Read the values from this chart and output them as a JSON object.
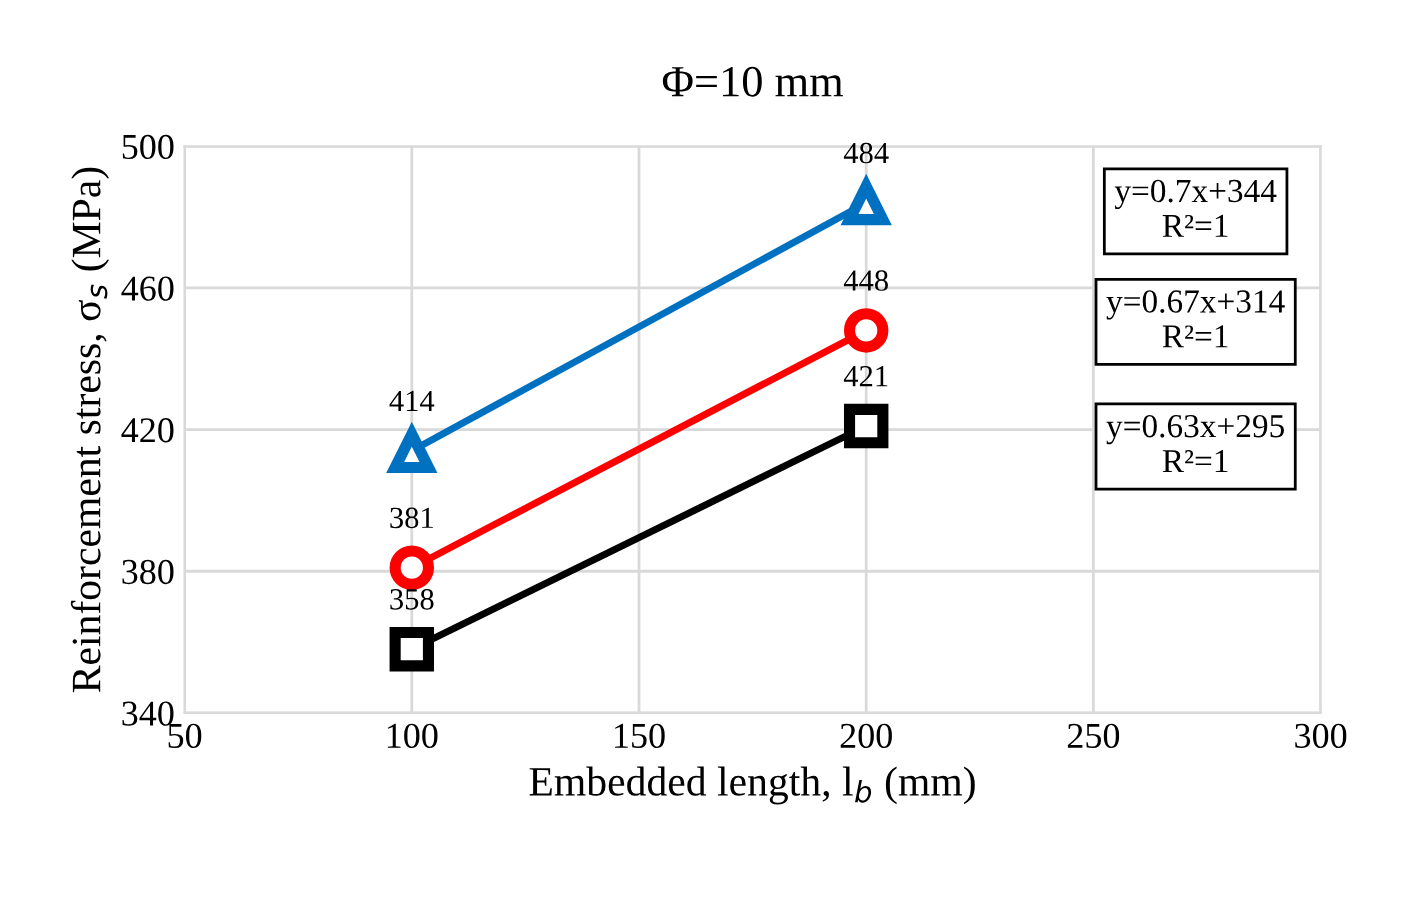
{
  "chart_data": {
    "type": "line",
    "title": "Φ=10 mm",
    "xlabel": "Embedded length, l$_{b}$ (mm)",
    "ylabel": "Reinforcement stress, σ$_{s}$ (MPa)",
    "x": [
      100,
      200
    ],
    "series": [
      {
        "color": "#0070c0",
        "values": [
          414,
          484
        ],
        "marker": "triangle"
      },
      {
        "color": "#ff0000",
        "values": [
          381,
          448
        ],
        "marker": "circle"
      },
      {
        "color": "#000000",
        "values": [
          358,
          421
        ],
        "marker": "square"
      }
    ],
    "xlim": [
      50,
      300
    ],
    "xticks": [
      50,
      100,
      150,
      200,
      250,
      300
    ],
    "ylim": [
      340,
      500
    ],
    "yticks": [
      340,
      380,
      420,
      460,
      500
    ],
    "grid": true,
    "data_labels": true,
    "line_style": "solid",
    "annotations": [
      "y=0.7x+344\nR²=1",
      "y=0.67x+314\nR²=1",
      "y=0.63x+295\nR²=1"
    ]
  }
}
